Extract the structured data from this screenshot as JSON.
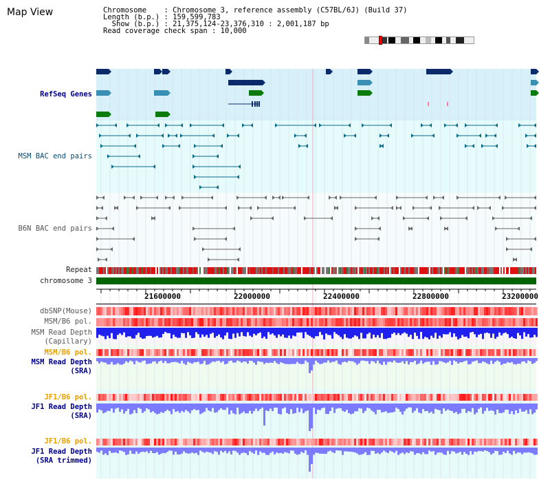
{
  "app": {
    "title": "Map View"
  },
  "info": {
    "chromosome_line": "Chromosome    : Chromosome 3, reference assembly (C57BL/6J) (Build 37)",
    "length_line": "Length (b.p.) : 159,599,783",
    "show_line": "  Show (b.p.) : 21,375,124-23,376,310 : 2,001,187 bp",
    "coverage_line": "Read coverage check span : 10,000"
  },
  "tracks": {
    "refseq": "RefSeq Genes",
    "msm_bac": "MSM BAC end pairs",
    "b6n_bac": "B6N BAC end pairs",
    "repeat": "Repeat",
    "chromosome": "chromosome 3",
    "dbsnp": "dbSNP(Mouse)",
    "msm_b6_pol": "MSM/B6 pol.",
    "msm_depth_cap_1": "MSM Read Depth",
    "msm_depth_cap_2": "(Capillary)",
    "msm_b6_pol2": "MSM/B6 pol.",
    "msm_depth_sra_1": "MSM Read Depth",
    "msm_depth_sra_2": "(SRA)",
    "jf1_pol": "JF1/B6 pol.",
    "jf1_depth_sra_1": "JF1 Read Depth",
    "jf1_depth_sra_2": "(SRA)",
    "jf1_pol2": "JF1/B6 pol.",
    "jf1_trim_1": "JF1 Read Depth",
    "jf1_trim_2": "(SRA trimmed)"
  },
  "axis": {
    "ticks": [
      "21600000",
      "22000000",
      "22400000",
      "22800000",
      "23200000"
    ]
  },
  "colors": {
    "refseq_bg": "#d8f0fa",
    "bac_bg": "#e6fbfb",
    "b6n_bg": "#f6fbfb",
    "chrom_green": "#006400",
    "snp_red": "#ff3030",
    "depth_blue": "#2020ee",
    "depth_light": "#7b7bff"
  }
}
